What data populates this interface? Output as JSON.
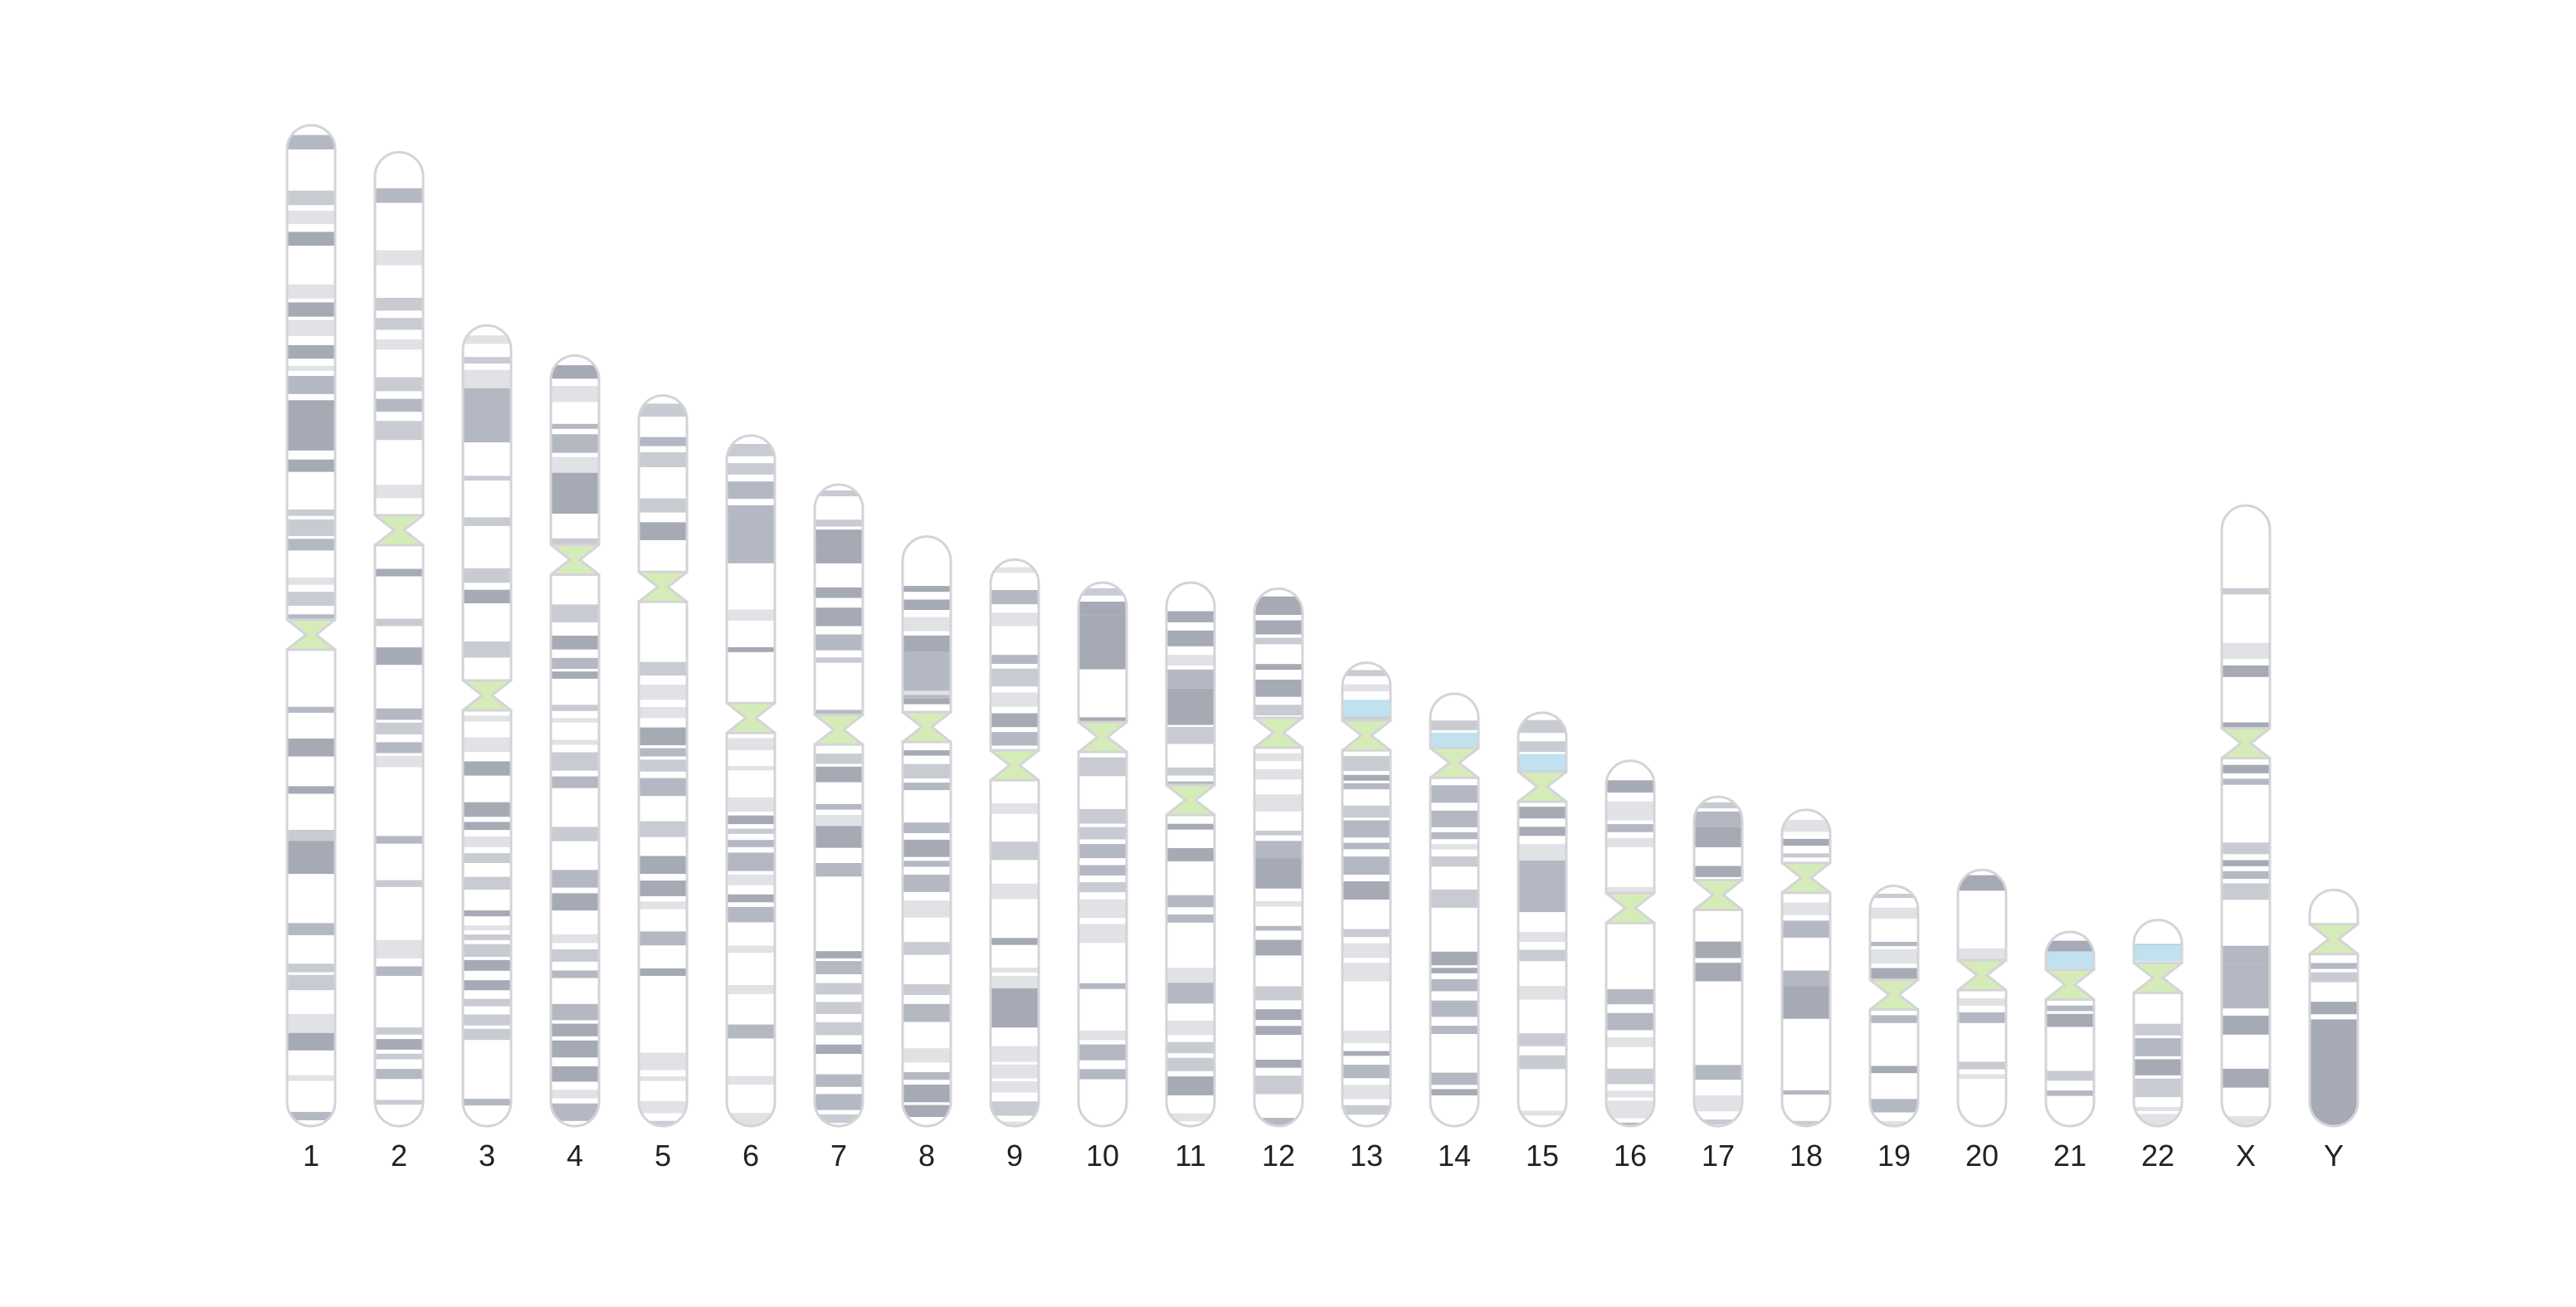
{
  "colors": {
    "background": "#ffffff",
    "outline": "#d4d4d8",
    "gneg": "#ffffff",
    "gpos25": "#e1e2e6",
    "gpos50": "#c9cbd3",
    "gpos75": "#b4b8c3",
    "gpos100": "#a6aab4",
    "centromere": "#d6ecb8",
    "stalk": "#bfe1f0"
  },
  "chromosomes": [
    {
      "label": "1",
      "length": 1.0,
      "centromere": 0.509
    },
    {
      "label": "2",
      "length": 0.973,
      "centromere": 0.388
    },
    {
      "label": "3",
      "length": 0.8,
      "centromere": 0.462
    },
    {
      "label": "4",
      "length": 0.77,
      "centromere": 0.265
    },
    {
      "label": "5",
      "length": 0.73,
      "centromere": 0.262
    },
    {
      "label": "6",
      "length": 0.69,
      "centromere": 0.409
    },
    {
      "label": "7",
      "length": 0.641,
      "centromere": 0.382
    },
    {
      "label": "8",
      "length": 0.589,
      "centromere": 0.323
    },
    {
      "label": "9",
      "length": 0.566,
      "centromere": 0.363
    },
    {
      "label": "10",
      "length": 0.543,
      "centromere": 0.284
    },
    {
      "label": "11",
      "length": 0.543,
      "centromere": 0.4
    },
    {
      "label": "12",
      "length": 0.537,
      "centromere": 0.268
    },
    {
      "label": "13",
      "length": 0.463,
      "centromere": 0.157,
      "stalk": 0.08
    },
    {
      "label": "14",
      "length": 0.432,
      "centromere": 0.16,
      "stalk": 0.09
    },
    {
      "label": "15",
      "length": 0.413,
      "centromere": 0.179,
      "stalk": 0.1
    },
    {
      "label": "16",
      "length": 0.365,
      "centromere": 0.403
    },
    {
      "label": "17",
      "length": 0.329,
      "centromere": 0.298
    },
    {
      "label": "18",
      "length": 0.316,
      "centromere": 0.215
    },
    {
      "label": "19",
      "length": 0.24,
      "centromere": 0.453
    },
    {
      "label": "20",
      "length": 0.256,
      "centromere": 0.411
    },
    {
      "label": "21",
      "length": 0.194,
      "centromere": 0.271,
      "stalk": 0.1
    },
    {
      "label": "22",
      "length": 0.206,
      "centromere": 0.281,
      "stalk": 0.12
    },
    {
      "label": "X",
      "length": 0.62,
      "centromere": 0.383
    },
    {
      "label": "Y",
      "length": 0.236,
      "centromere": 0.208
    }
  ]
}
